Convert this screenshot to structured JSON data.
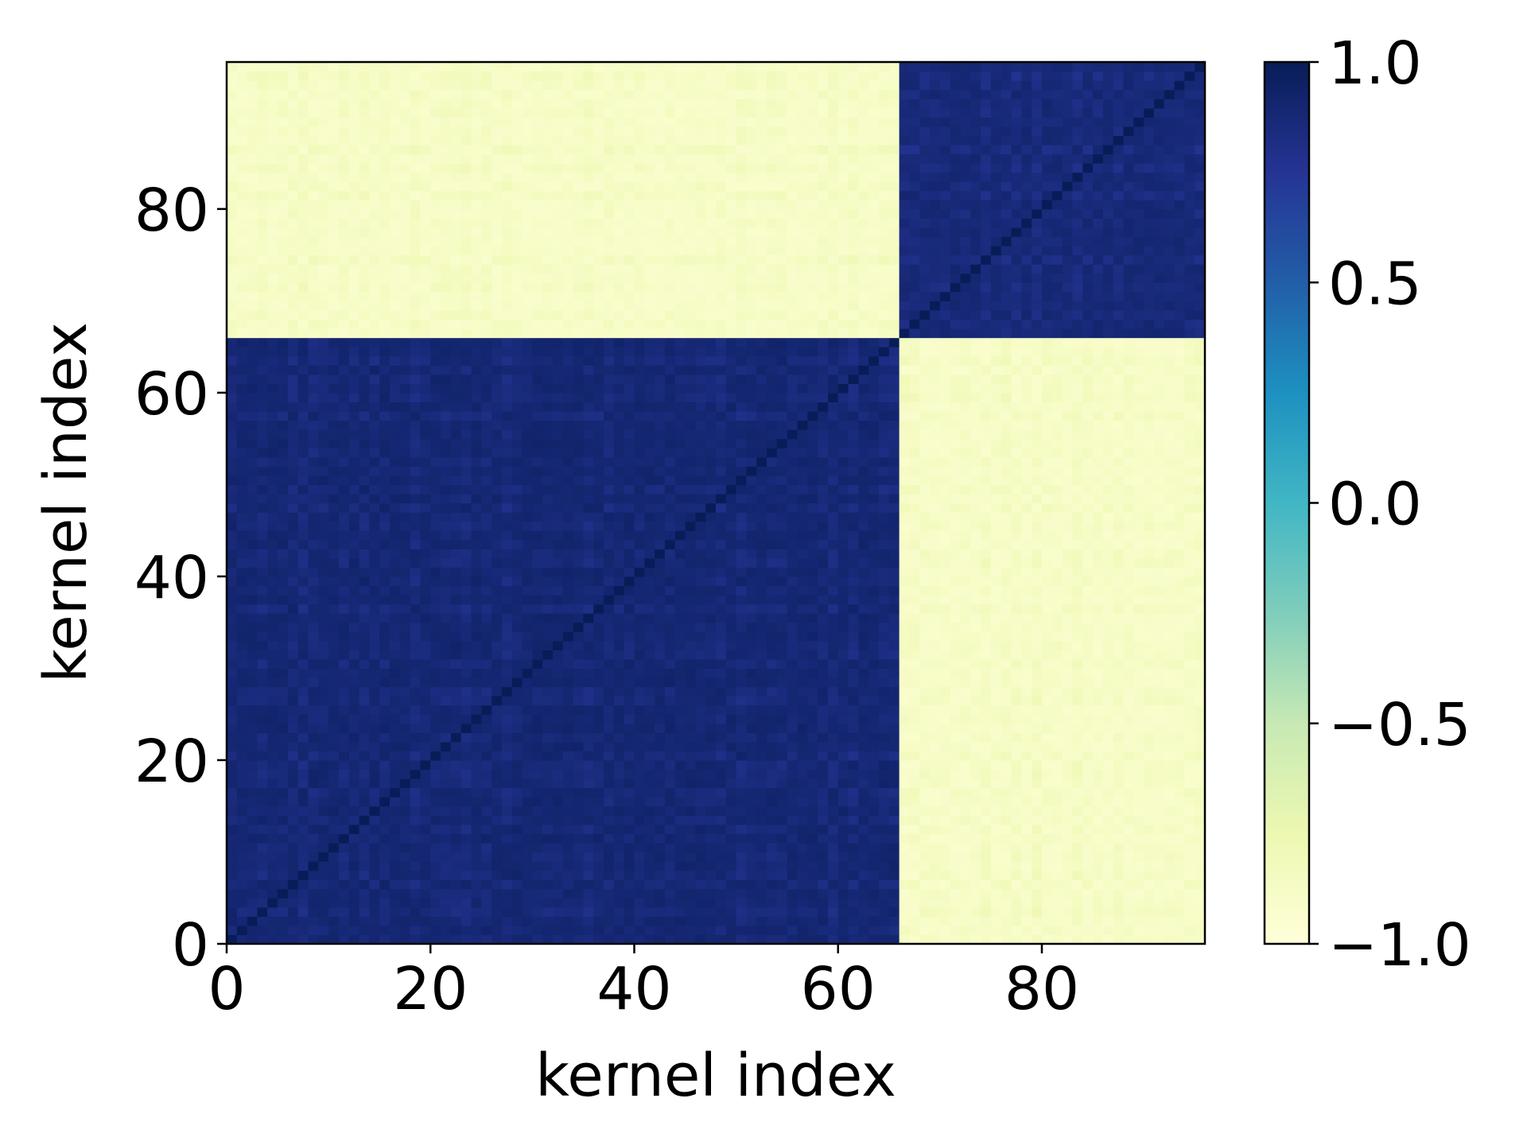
{
  "chart_data": {
    "type": "heatmap",
    "title": "",
    "xlabel": "kernel index",
    "ylabel": "kernel index",
    "n_rows": 96,
    "n_cols": 96,
    "xlim": [
      0,
      96
    ],
    "ylim": [
      0,
      96
    ],
    "x_ticks": [
      0,
      20,
      40,
      60,
      80
    ],
    "y_ticks": [
      0,
      20,
      40,
      60,
      80
    ],
    "x_tick_labels": [
      "0",
      "20",
      "40",
      "60",
      "80"
    ],
    "y_tick_labels": [
      "0",
      "20",
      "40",
      "60",
      "80"
    ],
    "origin": "lower",
    "blocks": [
      {
        "rows": [
          0,
          65
        ],
        "cols": [
          0,
          65
        ],
        "approx_value": 0.92
      },
      {
        "rows": [
          66,
          95
        ],
        "cols": [
          66,
          95
        ],
        "approx_value": 0.9
      },
      {
        "rows": [
          0,
          65
        ],
        "cols": [
          66,
          95
        ],
        "approx_value": -0.92
      },
      {
        "rows": [
          66,
          95
        ],
        "cols": [
          0,
          65
        ],
        "approx_value": -0.92
      }
    ],
    "diagonal_value": 1.0,
    "colorbar": {
      "colormap": "YlGnBu",
      "min": -1.0,
      "max": 1.0,
      "ticks": [
        1.0,
        0.5,
        0.0,
        -0.5,
        -1.0
      ],
      "tick_labels": [
        "1.0",
        "0.5",
        "0.0",
        "−0.5",
        "−1.0"
      ],
      "color_stops": [
        "#ffffd9",
        "#edf8b1",
        "#c7e9b4",
        "#7fcdbb",
        "#41b6c4",
        "#1d91c0",
        "#225ea8",
        "#253494",
        "#081d58"
      ]
    },
    "grid": false,
    "legend": "none"
  }
}
